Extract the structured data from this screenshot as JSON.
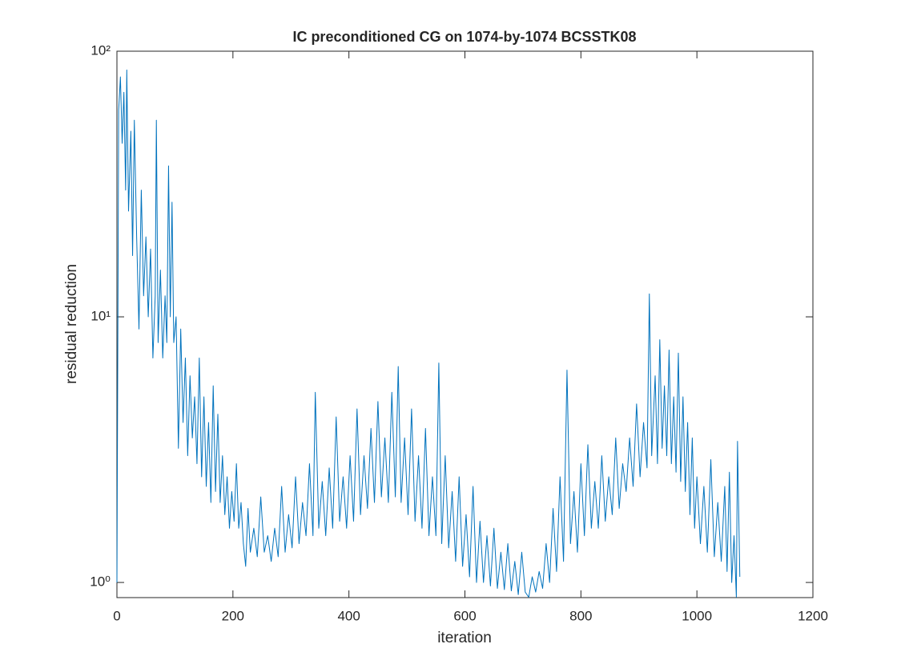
{
  "chart_data": {
    "type": "line",
    "title": "IC preconditioned CG on 1074-by-1074 BCSSTK08",
    "x_label": "iteration",
    "y_label": "residual reduction",
    "color": "#0072bd",
    "log_y": true,
    "xlim": [
      0,
      1200
    ],
    "xticks": [
      0,
      200,
      400,
      600,
      800,
      1000,
      1200
    ],
    "ylim": [
      0.877,
      100
    ],
    "yticks": [
      {
        "value": 1,
        "label": "10⁰"
      },
      {
        "value": 10,
        "label": "10¹"
      },
      {
        "value": 100,
        "label": "10²"
      }
    ],
    "x": [
      0,
      3,
      6,
      9,
      12,
      15,
      17,
      20,
      24,
      27,
      30,
      34,
      38,
      42,
      46,
      50,
      54,
      58,
      62,
      66,
      68,
      71,
      75,
      79,
      83,
      86,
      89,
      92,
      95,
      98,
      102,
      106,
      110,
      114,
      118,
      122,
      126,
      130,
      134,
      138,
      142,
      146,
      150,
      154,
      158,
      162,
      166,
      170,
      174,
      178,
      182,
      186,
      190,
      194,
      198,
      202,
      206,
      210,
      214,
      218,
      222,
      226,
      230,
      236,
      242,
      248,
      254,
      260,
      266,
      272,
      278,
      284,
      290,
      296,
      302,
      308,
      314,
      320,
      326,
      332,
      338,
      342,
      348,
      354,
      360,
      366,
      372,
      378,
      384,
      390,
      396,
      402,
      408,
      414,
      420,
      426,
      432,
      438,
      444,
      450,
      456,
      462,
      468,
      474,
      480,
      485,
      490,
      496,
      502,
      508,
      514,
      520,
      526,
      532,
      538,
      544,
      550,
      555,
      560,
      566,
      572,
      578,
      584,
      590,
      596,
      602,
      608,
      614,
      620,
      626,
      632,
      638,
      644,
      650,
      656,
      662,
      668,
      674,
      680,
      686,
      692,
      698,
      704,
      710,
      716,
      722,
      728,
      734,
      740,
      746,
      752,
      758,
      764,
      770,
      776,
      782,
      788,
      794,
      800,
      806,
      812,
      818,
      824,
      830,
      836,
      842,
      848,
      854,
      860,
      866,
      872,
      878,
      884,
      890,
      896,
      902,
      908,
      914,
      918,
      922,
      928,
      932,
      936,
      940,
      944,
      948,
      952,
      956,
      960,
      964,
      968,
      972,
      976,
      980,
      984,
      988,
      992,
      996,
      1000,
      1006,
      1012,
      1018,
      1024,
      1030,
      1036,
      1042,
      1048,
      1052,
      1056,
      1060,
      1064,
      1068,
      1070,
      1074
    ],
    "values": [
      1.0,
      60,
      80,
      45,
      70,
      30,
      85,
      25,
      50,
      17,
      55,
      20,
      9,
      30,
      12,
      20,
      10,
      18,
      7,
      12,
      55,
      8,
      15,
      7,
      12,
      8,
      37,
      10,
      27,
      8,
      10,
      3.2,
      9,
      4,
      7,
      3,
      6,
      3.5,
      5,
      2.8,
      7,
      2.5,
      5,
      2.3,
      4,
      2,
      5.5,
      2.2,
      4.3,
      2,
      3,
      1.8,
      2.5,
      1.6,
      2.2,
      1.7,
      2.8,
      1.6,
      2,
      1.4,
      1.15,
      1.9,
      1.3,
      1.6,
      1.25,
      2.1,
      1.3,
      1.5,
      1.2,
      1.6,
      1.25,
      2.3,
      1.3,
      1.8,
      1.35,
      2.5,
      1.4,
      2,
      1.5,
      2.8,
      1.5,
      5.2,
      1.6,
      2.4,
      1.5,
      2.7,
      1.6,
      4.2,
      1.7,
      2.5,
      1.6,
      3,
      1.7,
      4.5,
      1.8,
      3,
      1.9,
      3.8,
      2,
      4.8,
      2.1,
      3.5,
      2,
      5.2,
      2.1,
      6.5,
      2,
      3.5,
      1.8,
      4.5,
      1.7,
      3,
      1.6,
      3.8,
      1.5,
      2.5,
      1.5,
      6.7,
      1.4,
      3,
      1.35,
      2.2,
      1.2,
      2.5,
      1.15,
      1.8,
      1.05,
      2.3,
      1.0,
      1.7,
      1.0,
      1.5,
      0.97,
      1.6,
      0.95,
      1.3,
      0.94,
      1.4,
      0.93,
      1.2,
      0.9,
      1.3,
      0.92,
      0.88,
      1.05,
      0.92,
      1.1,
      0.95,
      1.4,
      1.0,
      1.9,
      1.1,
      2.5,
      1.2,
      6.3,
      1.4,
      2.2,
      1.3,
      2.8,
      1.5,
      3.3,
      1.6,
      2.4,
      1.6,
      3,
      1.7,
      2.5,
      1.8,
      3.5,
      1.9,
      2.8,
      2.2,
      3.5,
      2.3,
      4.7,
      2.5,
      4,
      2.7,
      12.2,
      3,
      6,
      2.8,
      8.2,
      3.2,
      5.5,
      3,
      7.5,
      2.8,
      5,
      2.6,
      7.3,
      2.4,
      5,
      2.2,
      4,
      1.8,
      3.5,
      1.6,
      2.5,
      1.4,
      2.3,
      1.3,
      2.9,
      1.25,
      2,
      1.2,
      2.3,
      1.1,
      2.6,
      1.0,
      1.5,
      0.88,
      3.4,
      1.05
    ]
  }
}
